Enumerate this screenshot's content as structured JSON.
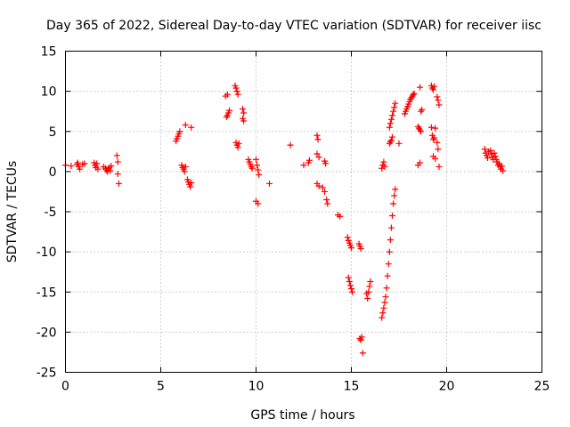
{
  "chart_data": {
    "type": "scatter",
    "title": "Day 365 of 2022, Sidereal Day-to-day VTEC variation (SDTVAR) for receiver iisc",
    "xlabel": "GPS time / hours",
    "ylabel": "SDTVAR / TECUs",
    "xlim": [
      0,
      25
    ],
    "ylim": [
      -25,
      15
    ],
    "xticks": [
      0,
      5,
      10,
      15,
      20,
      25
    ],
    "yticks": [
      -25,
      -20,
      -15,
      -10,
      -5,
      0,
      5,
      10,
      15
    ],
    "grid": true,
    "marker": "+",
    "color": "#ff0000",
    "series": [
      {
        "name": "SDTVAR",
        "points": [
          [
            0.0,
            0.8
          ],
          [
            0.3,
            0.7
          ],
          [
            0.6,
            0.9
          ],
          [
            0.65,
            1.1
          ],
          [
            0.7,
            0.6
          ],
          [
            0.75,
            0.3
          ],
          [
            0.9,
            0.9
          ],
          [
            1.0,
            1.0
          ],
          [
            1.5,
            1.1
          ],
          [
            1.55,
            0.8
          ],
          [
            1.6,
            0.5
          ],
          [
            1.65,
            1.0
          ],
          [
            1.7,
            0.3
          ],
          [
            2.0,
            0.6
          ],
          [
            2.1,
            0.4
          ],
          [
            2.15,
            0.2
          ],
          [
            2.2,
            0.0
          ],
          [
            2.25,
            0.3
          ],
          [
            2.3,
            0.5
          ],
          [
            2.35,
            0.1
          ],
          [
            2.4,
            0.7
          ],
          [
            2.7,
            2.0
          ],
          [
            2.75,
            1.2
          ],
          [
            2.75,
            -0.3
          ],
          [
            2.8,
            -1.5
          ],
          [
            5.8,
            3.8
          ],
          [
            5.85,
            4.1
          ],
          [
            5.9,
            4.4
          ],
          [
            5.95,
            4.7
          ],
          [
            6.0,
            5.0
          ],
          [
            6.3,
            5.8
          ],
          [
            6.6,
            5.5
          ],
          [
            6.1,
            0.8
          ],
          [
            6.15,
            0.5
          ],
          [
            6.2,
            0.3
          ],
          [
            6.25,
            0.0
          ],
          [
            6.3,
            0.6
          ],
          [
            6.4,
            -1.0
          ],
          [
            6.45,
            -1.3
          ],
          [
            6.5,
            -1.6
          ],
          [
            6.55,
            -1.9
          ],
          [
            6.6,
            -1.4
          ],
          [
            8.4,
            9.4
          ],
          [
            8.5,
            9.6
          ],
          [
            8.45,
            6.8
          ],
          [
            8.5,
            7.0
          ],
          [
            8.55,
            7.3
          ],
          [
            8.6,
            7.6
          ],
          [
            8.9,
            10.7
          ],
          [
            8.95,
            10.4
          ],
          [
            9.0,
            10.0
          ],
          [
            9.05,
            9.6
          ],
          [
            8.95,
            3.6
          ],
          [
            9.0,
            3.3
          ],
          [
            9.05,
            3.0
          ],
          [
            9.1,
            3.5
          ],
          [
            9.3,
            7.8
          ],
          [
            9.35,
            7.3
          ],
          [
            9.3,
            6.6
          ],
          [
            9.35,
            6.3
          ],
          [
            9.6,
            1.5
          ],
          [
            9.65,
            1.2
          ],
          [
            9.7,
            0.9
          ],
          [
            9.75,
            0.6
          ],
          [
            9.8,
            0.4
          ],
          [
            10.0,
            1.5
          ],
          [
            10.05,
            0.8
          ],
          [
            10.1,
            0.2
          ],
          [
            10.15,
            -0.4
          ],
          [
            10.0,
            -3.7
          ],
          [
            10.1,
            -4.0
          ],
          [
            10.7,
            -1.5
          ],
          [
            11.8,
            3.3
          ],
          [
            12.5,
            0.8
          ],
          [
            12.75,
            1.1
          ],
          [
            12.8,
            1.4
          ],
          [
            13.2,
            4.5
          ],
          [
            13.25,
            4.0
          ],
          [
            13.2,
            2.2
          ],
          [
            13.3,
            1.8
          ],
          [
            13.6,
            1.3
          ],
          [
            13.65,
            1.0
          ],
          [
            13.2,
            -1.5
          ],
          [
            13.3,
            -1.8
          ],
          [
            13.5,
            -2.0
          ],
          [
            13.6,
            -2.5
          ],
          [
            13.7,
            -3.5
          ],
          [
            13.75,
            -4.0
          ],
          [
            14.3,
            -5.4
          ],
          [
            14.4,
            -5.6
          ],
          [
            14.8,
            -8.2
          ],
          [
            14.85,
            -8.6
          ],
          [
            14.9,
            -8.9
          ],
          [
            14.95,
            -9.2
          ],
          [
            15.0,
            -9.5
          ],
          [
            14.85,
            -13.2
          ],
          [
            14.9,
            -13.7
          ],
          [
            14.95,
            -14.2
          ],
          [
            15.0,
            -14.6
          ],
          [
            15.05,
            -15.0
          ],
          [
            15.4,
            -9.0
          ],
          [
            15.45,
            -9.3
          ],
          [
            15.5,
            -9.6
          ],
          [
            15.45,
            -20.8
          ],
          [
            15.5,
            -21.0
          ],
          [
            15.55,
            -20.6
          ],
          [
            15.6,
            -22.6
          ],
          [
            15.8,
            -15.2
          ],
          [
            15.85,
            -15.8
          ],
          [
            15.9,
            -15.0
          ],
          [
            15.95,
            -14.3
          ],
          [
            16.0,
            -13.7
          ],
          [
            16.6,
            -18.2
          ],
          [
            16.65,
            -17.6
          ],
          [
            16.7,
            -17.0
          ],
          [
            16.75,
            -16.3
          ],
          [
            16.8,
            -15.6
          ],
          [
            16.85,
            -14.5
          ],
          [
            16.9,
            -13.0
          ],
          [
            16.95,
            -11.5
          ],
          [
            17.0,
            -10.0
          ],
          [
            17.05,
            -8.5
          ],
          [
            17.1,
            -7.0
          ],
          [
            17.15,
            -5.5
          ],
          [
            17.2,
            -4.0
          ],
          [
            17.25,
            -3.0
          ],
          [
            17.3,
            -2.2
          ],
          [
            16.6,
            0.4
          ],
          [
            16.65,
            0.8
          ],
          [
            16.7,
            1.2
          ],
          [
            16.75,
            0.6
          ],
          [
            17.0,
            3.5
          ],
          [
            17.05,
            3.7
          ],
          [
            17.1,
            3.9
          ],
          [
            17.15,
            4.3
          ],
          [
            17.0,
            5.5
          ],
          [
            17.05,
            6.0
          ],
          [
            17.1,
            6.5
          ],
          [
            17.15,
            7.0
          ],
          [
            17.2,
            7.5
          ],
          [
            17.25,
            8.0
          ],
          [
            17.3,
            8.5
          ],
          [
            17.5,
            3.5
          ],
          [
            17.8,
            7.2
          ],
          [
            17.85,
            7.5
          ],
          [
            17.9,
            7.8
          ],
          [
            17.95,
            8.1
          ],
          [
            18.0,
            8.4
          ],
          [
            18.05,
            8.7
          ],
          [
            18.1,
            9.0
          ],
          [
            18.15,
            9.2
          ],
          [
            18.2,
            9.4
          ],
          [
            18.25,
            9.6
          ],
          [
            18.3,
            9.7
          ],
          [
            18.6,
            10.5
          ],
          [
            18.65,
            7.5
          ],
          [
            18.7,
            7.7
          ],
          [
            18.5,
            5.6
          ],
          [
            18.55,
            5.4
          ],
          [
            18.6,
            5.2
          ],
          [
            18.65,
            5.0
          ],
          [
            18.5,
            0.8
          ],
          [
            18.6,
            1.1
          ],
          [
            19.2,
            10.7
          ],
          [
            19.25,
            10.4
          ],
          [
            19.3,
            10.2
          ],
          [
            19.35,
            10.6
          ],
          [
            19.2,
            5.5
          ],
          [
            19.25,
            4.5
          ],
          [
            19.3,
            4.0
          ],
          [
            19.35,
            4.2
          ],
          [
            19.4,
            5.4
          ],
          [
            19.3,
            1.9
          ],
          [
            19.4,
            1.6
          ],
          [
            19.5,
            9.3
          ],
          [
            19.55,
            8.9
          ],
          [
            19.6,
            8.3
          ],
          [
            19.5,
            3.6
          ],
          [
            19.55,
            2.8
          ],
          [
            19.6,
            0.6
          ],
          [
            22.0,
            2.8
          ],
          [
            22.05,
            2.3
          ],
          [
            22.1,
            2.0
          ],
          [
            22.15,
            1.7
          ],
          [
            22.2,
            2.5
          ],
          [
            22.3,
            2.6
          ],
          [
            22.35,
            2.2
          ],
          [
            22.4,
            1.8
          ],
          [
            22.45,
            1.5
          ],
          [
            22.5,
            2.3
          ],
          [
            22.55,
            1.9
          ],
          [
            22.6,
            1.5
          ],
          [
            22.65,
            1.2
          ],
          [
            22.7,
            0.8
          ],
          [
            22.75,
            1.0
          ],
          [
            22.8,
            0.6
          ],
          [
            22.85,
            0.3
          ],
          [
            22.9,
            0.7
          ],
          [
            22.95,
            0.1
          ]
        ]
      }
    ]
  }
}
